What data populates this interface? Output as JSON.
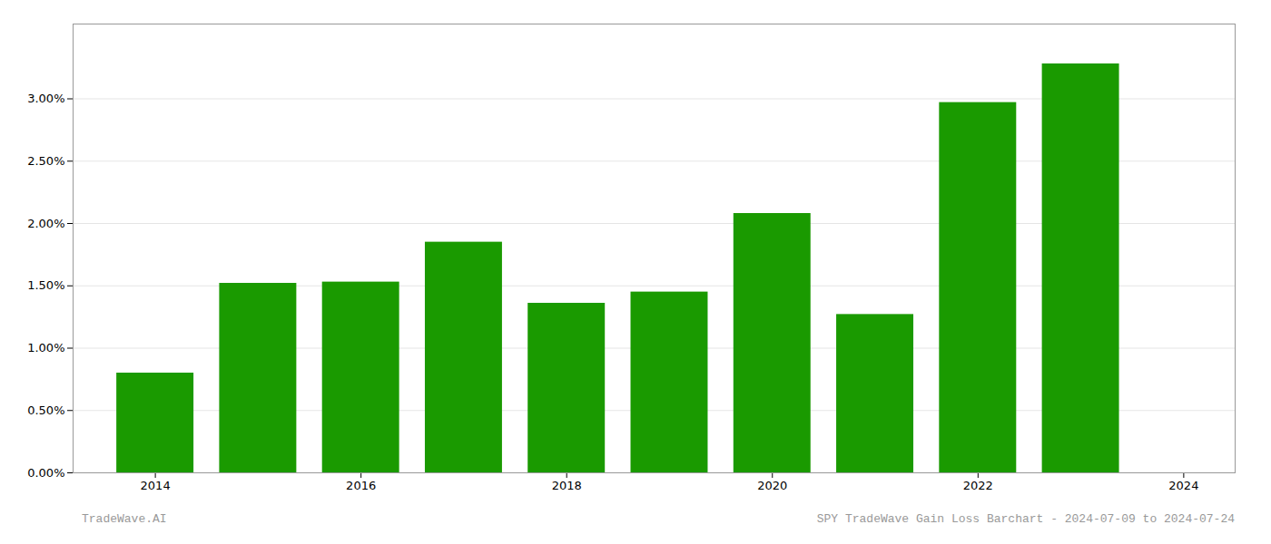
{
  "chart_data": {
    "type": "bar",
    "x": [
      2014,
      2015,
      2016,
      2017,
      2018,
      2019,
      2020,
      2021,
      2022,
      2023
    ],
    "values": [
      0.008,
      0.0152,
      0.0153,
      0.0185,
      0.0136,
      0.0145,
      0.0208,
      0.0127,
      0.0297,
      0.0328
    ],
    "color": "#1a9a00",
    "xlim": [
      2013.2,
      2024.5
    ],
    "xticks": [
      2014,
      2016,
      2018,
      2020,
      2022,
      2024
    ],
    "ylim": [
      0.0,
      0.036
    ],
    "yticks": [
      {
        "value": 0.0,
        "label": "0.00%"
      },
      {
        "value": 0.005,
        "label": "0.50%"
      },
      {
        "value": 0.01,
        "label": "1.00%"
      },
      {
        "value": 0.015,
        "label": "1.50%"
      },
      {
        "value": 0.02,
        "label": "2.00%"
      },
      {
        "value": 0.025,
        "label": "2.50%"
      },
      {
        "value": 0.03,
        "label": "3.00%"
      }
    ],
    "grid": true,
    "annotations": [
      "TradeWave.AI",
      "SPY TradeWave Gain Loss Barchart - 2024-07-09 to 2024-07-24"
    ]
  }
}
